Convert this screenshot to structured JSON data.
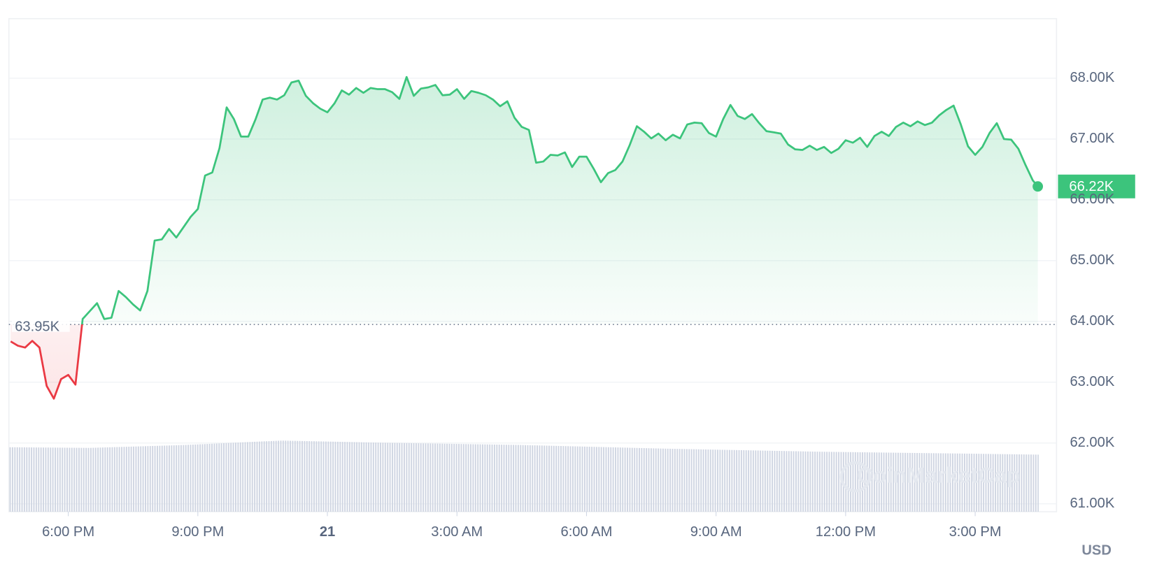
{
  "chart_data": {
    "type": "line",
    "x": [
      1000,
      1010,
      1020,
      1030,
      1040,
      1050,
      1060,
      1070,
      1080,
      1090,
      1100,
      1110,
      1120,
      1130,
      1140,
      1150,
      1160,
      1170,
      1180,
      1190,
      1200,
      1210,
      1220,
      1230,
      1240,
      1250,
      1260,
      1270,
      1280,
      1290,
      1300,
      1310,
      1320,
      1330,
      1340,
      1350,
      1360,
      1370,
      1380,
      1390,
      1400,
      1410,
      1420,
      1430,
      1440,
      1450,
      1460,
      1470,
      1480,
      1490,
      1500,
      1510,
      1520,
      1530,
      1540,
      1550,
      1560,
      1570,
      1580,
      1590,
      1600,
      1610,
      1620,
      1630,
      1640,
      1650,
      1660,
      1670,
      1680,
      1690,
      1700,
      1710,
      1720,
      1730,
      1740,
      1750,
      1760,
      1770,
      1780,
      1790,
      1800,
      1810,
      1820,
      1830,
      1840,
      1850,
      1860,
      1870,
      1880,
      1890,
      1900,
      1910,
      1920,
      1930,
      1940,
      1950,
      1960,
      1970,
      1980,
      1990,
      2000,
      2010,
      2020,
      2030,
      2040,
      2050,
      2060,
      2070,
      2080,
      2090,
      2100,
      2110,
      2120,
      2130,
      2140,
      2150,
      2160,
      2170,
      2180,
      2190,
      2200,
      2210,
      2220,
      2230,
      2240,
      2250,
      2260,
      2270,
      2280,
      2290,
      2300,
      2310,
      2320,
      2330,
      2340,
      2350,
      2360,
      2370,
      2380,
      2390,
      2400,
      2410,
      2420,
      2427
    ],
    "values": [
      63670,
      63600,
      63570,
      63680,
      63570,
      62940,
      62730,
      63050,
      63120,
      62960,
      64040,
      64170,
      64300,
      64040,
      64060,
      64500,
      64400,
      64280,
      64180,
      64500,
      65330,
      65350,
      65520,
      65380,
      65550,
      65720,
      65850,
      66400,
      66450,
      66850,
      67520,
      67330,
      67040,
      67040,
      67320,
      67650,
      67680,
      67650,
      67720,
      67930,
      67960,
      67710,
      67590,
      67500,
      67440,
      67590,
      67800,
      67730,
      67840,
      67760,
      67840,
      67820,
      67820,
      67770,
      67660,
      68020,
      67710,
      67830,
      67850,
      67890,
      67720,
      67730,
      67820,
      67660,
      67790,
      67760,
      67720,
      67650,
      67540,
      67620,
      67350,
      67200,
      67150,
      66610,
      66630,
      66740,
      66730,
      66780,
      66540,
      66710,
      66710,
      66510,
      66290,
      66440,
      66490,
      66630,
      66900,
      67210,
      67120,
      67010,
      67090,
      66980,
      67070,
      67010,
      67240,
      67270,
      67260,
      67100,
      67040,
      67330,
      67560,
      67380,
      67330,
      67410,
      67260,
      67130,
      67110,
      67090,
      66910,
      66830,
      66820,
      66890,
      66820,
      66870,
      66770,
      66840,
      66980,
      66940,
      67020,
      66870,
      67050,
      67120,
      67050,
      67200,
      67270,
      67210,
      67290,
      67230,
      67270,
      67390,
      67480,
      67550,
      67240,
      66880,
      66740,
      66870,
      67100,
      67260,
      67000,
      66990,
      66840,
      66570,
      66320,
      66220
    ],
    "current_label": "66.22K",
    "baseline": 63950,
    "baseline_label": "63.95K",
    "up_color": "#3cc47c",
    "down_color": "#ea3943",
    "xlim": [
      997.5,
      2453
    ],
    "xticks": [
      {
        "value": 1080,
        "label": "6:00 PM"
      },
      {
        "value": 1260,
        "label": "9:00 PM"
      },
      {
        "value": 1440,
        "label": "21"
      },
      {
        "value": 1620,
        "label": "3:00 AM"
      },
      {
        "value": 1800,
        "label": "6:00 AM"
      },
      {
        "value": 1980,
        "label": "9:00 AM"
      },
      {
        "value": 2160,
        "label": "12:00 PM"
      },
      {
        "value": 2340,
        "label": "3:00 PM"
      }
    ],
    "ylim": [
      60870,
      68980
    ],
    "yticks": [
      {
        "value": 61000,
        "label": "61.00K"
      },
      {
        "value": 62000,
        "label": "62.00K"
      },
      {
        "value": 63000,
        "label": "63.00K"
      },
      {
        "value": 64000,
        "label": "64.00K"
      },
      {
        "value": 65000,
        "label": "65.00K"
      },
      {
        "value": 66000,
        "label": "66.00K"
      },
      {
        "value": 67000,
        "label": "67.00K"
      },
      {
        "value": 68000,
        "label": "68.00K"
      }
    ],
    "grid": true,
    "currency": "USD",
    "watermark": "CoinMarketCap"
  }
}
